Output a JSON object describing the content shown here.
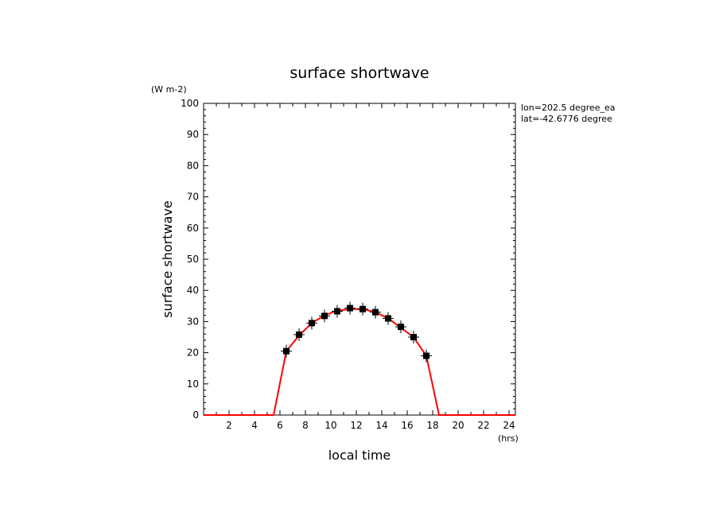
{
  "chart_data": {
    "type": "line",
    "title": "surface shortwave",
    "xlabel": "local time",
    "ylabel": "surface shortwave",
    "xunit": "(hrs)",
    "yunit": "(W m-2)",
    "annotations": [
      "lon=202.5 degree_ea",
      "lat=-42.6776 degree"
    ],
    "xlim": [
      0,
      24.5
    ],
    "ylim": [
      0,
      100
    ],
    "xticks": [
      2,
      4,
      6,
      8,
      10,
      12,
      14,
      16,
      18,
      20,
      22,
      24
    ],
    "yticks": [
      0,
      10,
      20,
      30,
      40,
      50,
      60,
      70,
      80,
      90,
      100
    ],
    "grid": false,
    "series": [
      {
        "style": "line",
        "color": "#ff0000",
        "x": [
          0,
          5.5,
          6.5,
          7.5,
          8.5,
          9.5,
          10.5,
          11.5,
          12.5,
          13.5,
          14.5,
          15.5,
          16.5,
          17.5,
          18.5,
          24.5
        ],
        "y": [
          0,
          0,
          20.5,
          25.5,
          29.5,
          32,
          33.5,
          34,
          34,
          33,
          31,
          28,
          25,
          19,
          0,
          0
        ]
      },
      {
        "style": "markers",
        "color": "#000000",
        "x": [
          6.5,
          7.5,
          8.5,
          9.5,
          10.5,
          11.5,
          12.5,
          13.5,
          14.5,
          15.5,
          16.5,
          17.5
        ],
        "y": [
          20.5,
          25.8,
          29.5,
          31.8,
          33.3,
          34.3,
          34,
          33,
          31,
          28.3,
          25,
          19
        ]
      }
    ]
  }
}
